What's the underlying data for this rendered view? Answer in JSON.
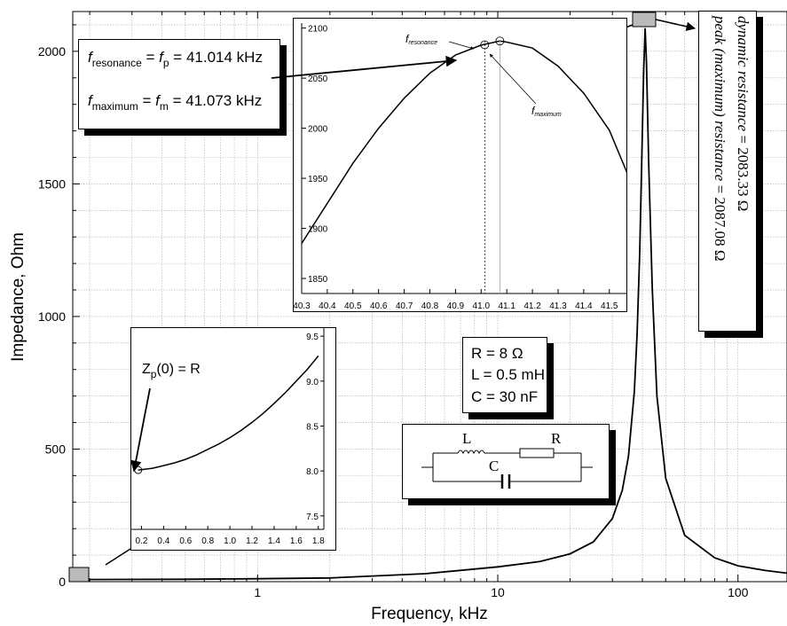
{
  "chart_data": [
    {
      "type": "line",
      "title": "",
      "xlabel": "Frequency, kHz",
      "ylabel": "Impedance, Ohm",
      "x_scale": "log",
      "xlim": [
        0.17,
        160
      ],
      "ylim": [
        0,
        2150
      ],
      "x_ticks": [
        "1",
        "10",
        "100"
      ],
      "y_ticks": [
        "0",
        "500",
        "1000",
        "1500",
        "2000"
      ],
      "grid": true,
      "series": [
        {
          "x": [
            0.17,
            0.5,
            1,
            2,
            5,
            10,
            15,
            20,
            25,
            30,
            33,
            35,
            37,
            38,
            39,
            40,
            40.5,
            41.07,
            41.6,
            42.5,
            44,
            46,
            50,
            60,
            80,
            100,
            130,
            160
          ],
          "y": [
            8,
            9,
            11,
            14,
            30,
            56,
            76,
            105,
            150,
            238,
            345,
            472,
            715,
            930,
            1240,
            1700,
            1930,
            2087,
            1960,
            1580,
            1100,
            700,
            390,
            175,
            90,
            60,
            42,
            32
          ]
        }
      ]
    },
    {
      "type": "line",
      "title": "",
      "xlim": [
        40.3,
        41.57
      ],
      "ylim": [
        1835,
        2105
      ],
      "x_ticks": [
        "40.3",
        "40.4",
        "40.5",
        "40.6",
        "40.7",
        "40.8",
        "40.9",
        "41.0",
        "41.1",
        "41.2",
        "41.3",
        "41.4",
        "41.5"
      ],
      "y_ticks": [
        "1850",
        "1900",
        "1950",
        "2000",
        "2050",
        "2100"
      ],
      "series": [
        {
          "x": [
            40.3,
            40.4,
            40.5,
            40.6,
            40.7,
            40.8,
            40.9,
            41.0,
            41.073,
            41.1,
            41.2,
            41.3,
            41.4,
            41.5,
            41.57
          ],
          "y": [
            1885,
            1925,
            1965,
            2000,
            2030,
            2055,
            2073,
            2083,
            2087,
            2086,
            2080,
            2062,
            2035,
            1998,
            1955
          ]
        }
      ],
      "annotations": {
        "f_resonance": {
          "x": 41.014,
          "y": 2083.33
        },
        "f_maximum": {
          "x": 41.073,
          "y": 2087.08
        }
      }
    },
    {
      "type": "line",
      "title": "",
      "xlim": [
        0.1,
        1.85
      ],
      "ylim": [
        7.35,
        9.6
      ],
      "x_ticks": [
        "0.2",
        "0.4",
        "0.6",
        "0.8",
        "1.0",
        "1.2",
        "1.4",
        "1.6",
        "1.8"
      ],
      "y_ticks": [
        "7.5",
        "8.0",
        "8.5",
        "9.0",
        "9.5"
      ],
      "series": [
        {
          "x": [
            0.17,
            0.3,
            0.4,
            0.5,
            0.6,
            0.7,
            0.8,
            0.9,
            1.0,
            1.1,
            1.2,
            1.3,
            1.4,
            1.5,
            1.6,
            1.7,
            1.8
          ],
          "y": [
            8.01,
            8.03,
            8.06,
            8.09,
            8.13,
            8.18,
            8.24,
            8.3,
            8.37,
            8.45,
            8.54,
            8.64,
            8.75,
            8.87,
            9.0,
            9.13,
            9.28
          ]
        }
      ]
    }
  ],
  "labels": {
    "freq_box": {
      "f": "f",
      "sub_resonance": "resonance",
      "eq1": " = ",
      "f2": "f",
      "sub_p": "p",
      "val1": " = 41.014 kHz",
      "sub_maximum": "maximum",
      "sub_m": "m",
      "val2": " = 41.073 kHz"
    },
    "inset_f_resonance": "resonance",
    "inset_f_maximum": "maximum",
    "inset_f": "f",
    "params": {
      "r": "R = 8 Ω",
      "l": "L = 0.5 mH",
      "c": "C = 30 nF"
    },
    "circuit": {
      "l": "L",
      "r": "R",
      "c": "C"
    },
    "zp": {
      "z": "Z",
      "sub": "p",
      "rest": "(0) = R"
    },
    "resistance": {
      "dynamic_label": "dynamic resistance",
      "dynamic_value": " = 2083.33 Ω",
      "peak_label": "peak (maximum) resistance",
      "peak_value": " = 2087.08 Ω"
    }
  }
}
